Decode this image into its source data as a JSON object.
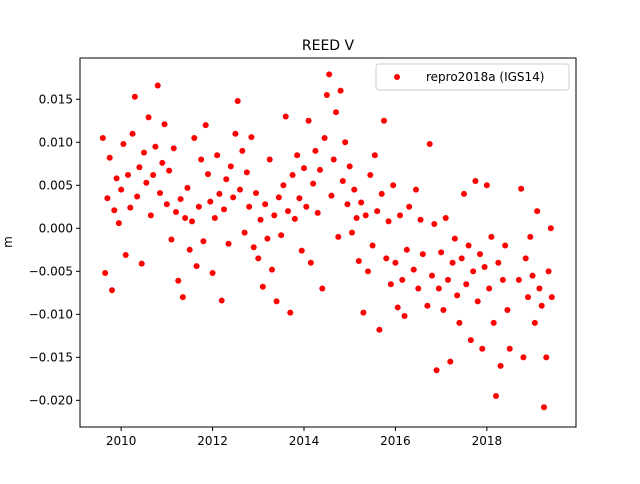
{
  "chart_data": {
    "type": "scatter",
    "title": "REED V",
    "xlabel": "",
    "ylabel": "m",
    "xlim": [
      2009.1,
      2019.95
    ],
    "ylim": [
      -0.0231,
      0.0198
    ],
    "grid": false,
    "x_ticks": [
      2010,
      2012,
      2014,
      2016,
      2018
    ],
    "x_tick_labels": [
      "2010",
      "2012",
      "2014",
      "2016",
      "2018"
    ],
    "y_ticks": [
      -0.02,
      -0.015,
      -0.01,
      -0.005,
      0.0,
      0.005,
      0.01,
      0.015
    ],
    "y_tick_labels": [
      "−0.020",
      "−0.015",
      "−0.010",
      "−0.005",
      "0.000",
      "0.005",
      "0.010",
      "0.015"
    ],
    "legend": {
      "placement": "top-right",
      "entries": [
        "repro2018a (IGS14)"
      ]
    },
    "series": [
      {
        "name": "repro2018a (IGS14)",
        "color": "#ff0000",
        "marker": "circle",
        "points": [
          [
            2009.6,
            0.0105
          ],
          [
            2009.65,
            -0.0052
          ],
          [
            2009.7,
            0.0035
          ],
          [
            2009.75,
            0.0082
          ],
          [
            2009.8,
            -0.0072
          ],
          [
            2009.85,
            0.0021
          ],
          [
            2009.9,
            0.0058
          ],
          [
            2009.95,
            0.0006
          ],
          [
            2010.0,
            0.0045
          ],
          [
            2010.05,
            0.0098
          ],
          [
            2010.1,
            -0.0031
          ],
          [
            2010.15,
            0.0062
          ],
          [
            2010.2,
            0.0024
          ],
          [
            2010.25,
            0.011
          ],
          [
            2010.3,
            0.0153
          ],
          [
            2010.35,
            0.0037
          ],
          [
            2010.4,
            0.0071
          ],
          [
            2010.45,
            -0.0041
          ],
          [
            2010.5,
            0.0088
          ],
          [
            2010.55,
            0.0053
          ],
          [
            2010.6,
            0.0129
          ],
          [
            2010.65,
            0.0015
          ],
          [
            2010.7,
            0.0062
          ],
          [
            2010.75,
            0.0095
          ],
          [
            2010.8,
            0.0166
          ],
          [
            2010.85,
            0.0041
          ],
          [
            2010.9,
            0.0076
          ],
          [
            2010.95,
            0.0121
          ],
          [
            2011.0,
            0.0028
          ],
          [
            2011.05,
            0.0067
          ],
          [
            2011.1,
            -0.0013
          ],
          [
            2011.15,
            0.0093
          ],
          [
            2011.2,
            0.0019
          ],
          [
            2011.25,
            -0.0061
          ],
          [
            2011.3,
            0.0034
          ],
          [
            2011.35,
            -0.008
          ],
          [
            2011.4,
            0.0012
          ],
          [
            2011.45,
            0.0047
          ],
          [
            2011.5,
            -0.0025
          ],
          [
            2011.55,
            0.0008
          ],
          [
            2011.6,
            0.0105
          ],
          [
            2011.65,
            -0.0044
          ],
          [
            2011.7,
            0.0025
          ],
          [
            2011.75,
            0.008
          ],
          [
            2011.8,
            -0.0015
          ],
          [
            2011.85,
            0.012
          ],
          [
            2011.9,
            0.0063
          ],
          [
            2011.95,
            0.0031
          ],
          [
            2012.0,
            -0.0052
          ],
          [
            2012.05,
            0.0012
          ],
          [
            2012.1,
            0.0085
          ],
          [
            2012.15,
            0.004
          ],
          [
            2012.2,
            -0.0084
          ],
          [
            2012.25,
            0.0022
          ],
          [
            2012.3,
            0.0057
          ],
          [
            2012.35,
            -0.0018
          ],
          [
            2012.4,
            0.0072
          ],
          [
            2012.45,
            0.0036
          ],
          [
            2012.5,
            0.011
          ],
          [
            2012.55,
            0.0148
          ],
          [
            2012.6,
            0.0045
          ],
          [
            2012.65,
            0.009
          ],
          [
            2012.7,
            -0.0005
          ],
          [
            2012.75,
            0.0065
          ],
          [
            2012.8,
            0.0025
          ],
          [
            2012.85,
            0.0106
          ],
          [
            2012.9,
            -0.0022
          ],
          [
            2012.95,
            0.0041
          ],
          [
            2013.0,
            -0.0035
          ],
          [
            2013.05,
            0.001
          ],
          [
            2013.1,
            -0.0068
          ],
          [
            2013.15,
            0.0028
          ],
          [
            2013.2,
            -0.0012
          ],
          [
            2013.25,
            0.008
          ],
          [
            2013.3,
            -0.0048
          ],
          [
            2013.35,
            0.0015
          ],
          [
            2013.4,
            -0.0085
          ],
          [
            2013.45,
            0.0036
          ],
          [
            2013.5,
            -0.0008
          ],
          [
            2013.55,
            0.005
          ],
          [
            2013.6,
            0.013
          ],
          [
            2013.65,
            0.002
          ],
          [
            2013.7,
            -0.0098
          ],
          [
            2013.75,
            0.0062
          ],
          [
            2013.8,
            0.0011
          ],
          [
            2013.85,
            0.0085
          ],
          [
            2013.9,
            0.0035
          ],
          [
            2013.95,
            -0.0026
          ],
          [
            2014.0,
            0.007
          ],
          [
            2014.05,
            0.0025
          ],
          [
            2014.1,
            0.0125
          ],
          [
            2014.15,
            -0.004
          ],
          [
            2014.2,
            0.0052
          ],
          [
            2014.25,
            0.009
          ],
          [
            2014.3,
            0.0018
          ],
          [
            2014.35,
            0.0068
          ],
          [
            2014.4,
            -0.007
          ],
          [
            2014.45,
            0.0105
          ],
          [
            2014.5,
            0.0155
          ],
          [
            2014.55,
            0.0179
          ],
          [
            2014.6,
            0.0038
          ],
          [
            2014.65,
            0.008
          ],
          [
            2014.7,
            0.0135
          ],
          [
            2014.75,
            -0.001
          ],
          [
            2014.8,
            0.016
          ],
          [
            2014.85,
            0.0055
          ],
          [
            2014.9,
            0.01
          ],
          [
            2014.95,
            0.0028
          ],
          [
            2015.0,
            0.0072
          ],
          [
            2015.05,
            -0.0005
          ],
          [
            2015.1,
            0.0045
          ],
          [
            2015.15,
            0.0012
          ],
          [
            2015.2,
            -0.0038
          ],
          [
            2015.25,
            0.003
          ],
          [
            2015.3,
            -0.0098
          ],
          [
            2015.35,
            0.0015
          ],
          [
            2015.4,
            -0.005
          ],
          [
            2015.45,
            0.0062
          ],
          [
            2015.5,
            -0.002
          ],
          [
            2015.55,
            0.0085
          ],
          [
            2015.6,
            0.002
          ],
          [
            2015.65,
            -0.0118
          ],
          [
            2015.7,
            0.004
          ],
          [
            2015.75,
            0.0125
          ],
          [
            2015.8,
            -0.0035
          ],
          [
            2015.85,
            0.0008
          ],
          [
            2015.9,
            -0.0065
          ],
          [
            2015.95,
            0.005
          ],
          [
            2016.0,
            -0.004
          ],
          [
            2016.05,
            -0.0092
          ],
          [
            2016.1,
            0.0015
          ],
          [
            2016.15,
            -0.006
          ],
          [
            2016.2,
            -0.0102
          ],
          [
            2016.25,
            -0.0025
          ],
          [
            2016.3,
            0.0025
          ],
          [
            2016.4,
            -0.0048
          ],
          [
            2016.45,
            0.0045
          ],
          [
            2016.5,
            -0.007
          ],
          [
            2016.55,
            0.001
          ],
          [
            2016.6,
            -0.003
          ],
          [
            2016.7,
            -0.009
          ],
          [
            2016.75,
            0.0098
          ],
          [
            2016.8,
            -0.0055
          ],
          [
            2016.85,
            0.0005
          ],
          [
            2016.9,
            -0.0165
          ],
          [
            2016.95,
            -0.007
          ],
          [
            2017.0,
            -0.0028
          ],
          [
            2017.05,
            -0.0095
          ],
          [
            2017.1,
            0.0012
          ],
          [
            2017.15,
            -0.006
          ],
          [
            2017.2,
            -0.0155
          ],
          [
            2017.25,
            -0.004
          ],
          [
            2017.3,
            -0.0012
          ],
          [
            2017.35,
            -0.0078
          ],
          [
            2017.4,
            -0.011
          ],
          [
            2017.45,
            -0.0035
          ],
          [
            2017.5,
            0.004
          ],
          [
            2017.55,
            -0.0065
          ],
          [
            2017.6,
            -0.002
          ],
          [
            2017.65,
            -0.013
          ],
          [
            2017.7,
            -0.005
          ],
          [
            2017.75,
            0.0055
          ],
          [
            2017.8,
            -0.0085
          ],
          [
            2017.85,
            -0.003
          ],
          [
            2017.9,
            -0.014
          ],
          [
            2017.95,
            -0.0045
          ],
          [
            2018.0,
            0.005
          ],
          [
            2018.05,
            -0.007
          ],
          [
            2018.1,
            -0.001
          ],
          [
            2018.15,
            -0.011
          ],
          [
            2018.2,
            -0.0195
          ],
          [
            2018.25,
            -0.004
          ],
          [
            2018.3,
            -0.016
          ],
          [
            2018.35,
            -0.006
          ],
          [
            2018.4,
            -0.002
          ],
          [
            2018.45,
            -0.0095
          ],
          [
            2018.5,
            -0.014
          ],
          [
            2018.7,
            -0.006
          ],
          [
            2018.75,
            0.0046
          ],
          [
            2018.8,
            -0.015
          ],
          [
            2018.85,
            -0.0035
          ],
          [
            2018.9,
            -0.008
          ],
          [
            2018.95,
            -0.001
          ],
          [
            2019.0,
            -0.0055
          ],
          [
            2019.05,
            -0.011
          ],
          [
            2019.1,
            0.002
          ],
          [
            2019.15,
            -0.007
          ],
          [
            2019.2,
            -0.009
          ],
          [
            2019.25,
            -0.0208
          ],
          [
            2019.3,
            -0.015
          ],
          [
            2019.35,
            -0.005
          ],
          [
            2019.4,
            0.0
          ],
          [
            2019.42,
            -0.008
          ]
        ]
      }
    ]
  }
}
